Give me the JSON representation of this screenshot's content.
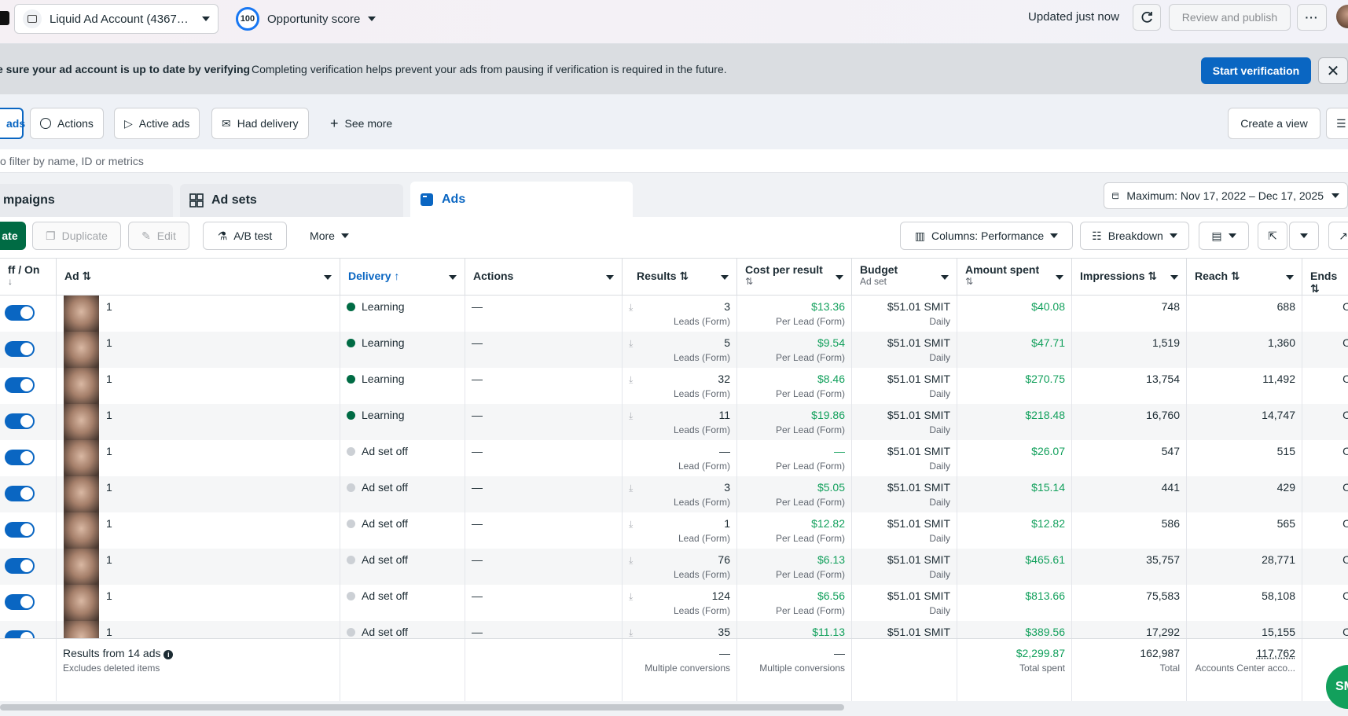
{
  "topbar": {
    "account_name": "Liquid Ad Account (4367…",
    "opportunity_score": "100",
    "opportunity_label": "Opportunity score",
    "updated_text": "Updated just now",
    "review_label": "Review and publish",
    "more_label": "···"
  },
  "banner": {
    "bold_text": "e sure your ad account is up to date by verifying",
    "text": "Completing verification helps prevent your ads from pausing if verification is required in the future.",
    "button_label": "Start verification",
    "close_label": "✕"
  },
  "filters": {
    "chips": [
      {
        "label": "ads"
      },
      {
        "label": "Actions"
      },
      {
        "label": "Active ads"
      },
      {
        "label": "Had delivery"
      },
      {
        "label": "See more"
      }
    ],
    "create_view_label": "Create a view"
  },
  "search": {
    "placeholder": "o filter by name, ID or metrics"
  },
  "levels": {
    "campaigns": "mpaigns",
    "adsets": "Ad sets",
    "ads": "Ads",
    "date_range": "Maximum: Nov 17, 2022 – Dec 17, 2025"
  },
  "toolbar": {
    "create_label": "ate",
    "duplicate_label": "Duplicate",
    "edit_label": "Edit",
    "ab_label": "A/B test",
    "more_label": "More",
    "columns_label": "Columns: Performance",
    "breakdown_label": "Breakdown"
  },
  "columns": {
    "offon": "ff / On",
    "offon_sort": "↓",
    "ad": "Ad ⇅",
    "delivery": "Delivery ↑",
    "actions": "Actions",
    "results": "Results ⇅",
    "cpr": "Cost per result",
    "cpr_sort": "⇅",
    "budget": "Budget",
    "budget_sub": "Ad set",
    "spent": "Amount spent",
    "spent_sort": "⇅",
    "impressions": "Impressions ⇅",
    "reach": "Reach ⇅",
    "ends": "Ends ⇅"
  },
  "rows": [
    {
      "name": "1",
      "delivery": "Learning",
      "status": "on",
      "actions": "—",
      "results": "3",
      "results_sub": "Leads (Form)",
      "cpr": "$13.36",
      "cpr_sub": "Per Lead (Form)",
      "budget": "$51.01 SMIT",
      "budget_sub": "Daily",
      "spent": "$40.08",
      "impressions": "748",
      "reach": "688",
      "ends": "O"
    },
    {
      "name": "1",
      "delivery": "Learning",
      "status": "on",
      "actions": "—",
      "results": "5",
      "results_sub": "Leads (Form)",
      "cpr": "$9.54",
      "cpr_sub": "Per Lead (Form)",
      "budget": "$51.01 SMIT",
      "budget_sub": "Daily",
      "spent": "$47.71",
      "impressions": "1,519",
      "reach": "1,360",
      "ends": "O"
    },
    {
      "name": "1",
      "delivery": "Learning",
      "status": "on",
      "actions": "—",
      "results": "32",
      "results_sub": "Leads (Form)",
      "cpr": "$8.46",
      "cpr_sub": "Per Lead (Form)",
      "budget": "$51.01 SMIT",
      "budget_sub": "Daily",
      "spent": "$270.75",
      "impressions": "13,754",
      "reach": "11,492",
      "ends": "O"
    },
    {
      "name": "1",
      "delivery": "Learning",
      "status": "on",
      "actions": "—",
      "results": "11",
      "results_sub": "Leads (Form)",
      "cpr": "$19.86",
      "cpr_sub": "Per Lead (Form)",
      "budget": "$51.01 SMIT",
      "budget_sub": "Daily",
      "spent": "$218.48",
      "impressions": "16,760",
      "reach": "14,747",
      "ends": "O"
    },
    {
      "name": "1",
      "delivery": "Ad set off",
      "status": "off",
      "actions": "—",
      "results": "—",
      "results_sub": "Lead (Form)",
      "cpr": "—",
      "cpr_sub": "Per Lead (Form)",
      "budget": "$51.01 SMIT",
      "budget_sub": "Daily",
      "spent": "$26.07",
      "impressions": "547",
      "reach": "515",
      "ends": "O"
    },
    {
      "name": "1",
      "delivery": "Ad set off",
      "status": "off",
      "actions": "—",
      "results": "3",
      "results_sub": "Leads (Form)",
      "cpr": "$5.05",
      "cpr_sub": "Per Lead (Form)",
      "budget": "$51.01 SMIT",
      "budget_sub": "Daily",
      "spent": "$15.14",
      "impressions": "441",
      "reach": "429",
      "ends": "O"
    },
    {
      "name": "1",
      "delivery": "Ad set off",
      "status": "off",
      "actions": "—",
      "results": "1",
      "results_sub": "Lead (Form)",
      "cpr": "$12.82",
      "cpr_sub": "Per Lead (Form)",
      "budget": "$51.01 SMIT",
      "budget_sub": "Daily",
      "spent": "$12.82",
      "impressions": "586",
      "reach": "565",
      "ends": "O"
    },
    {
      "name": "1",
      "delivery": "Ad set off",
      "status": "off",
      "actions": "—",
      "results": "76",
      "results_sub": "Leads (Form)",
      "cpr": "$6.13",
      "cpr_sub": "Per Lead (Form)",
      "budget": "$51.01 SMIT",
      "budget_sub": "Daily",
      "spent": "$465.61",
      "impressions": "35,757",
      "reach": "28,771",
      "ends": "O"
    },
    {
      "name": "1",
      "delivery": "Ad set off",
      "status": "off",
      "actions": "—",
      "results": "124",
      "results_sub": "Leads (Form)",
      "cpr": "$6.56",
      "cpr_sub": "Per Lead (Form)",
      "budget": "$51.01 SMIT",
      "budget_sub": "Daily",
      "spent": "$813.66",
      "impressions": "75,583",
      "reach": "58,108",
      "ends": "O"
    },
    {
      "name": "1",
      "delivery": "Ad set off",
      "status": "off",
      "actions": "—",
      "results": "35",
      "results_sub": "",
      "cpr": "$11.13",
      "cpr_sub": "",
      "budget": "$51.01 SMIT",
      "budget_sub": "",
      "spent": "$389.56",
      "impressions": "17,292",
      "reach": "15,155",
      "ends": "O"
    }
  ],
  "footer": {
    "summary": "Results from 14 ads",
    "summary_sub": "Excludes deleted items",
    "results": "—",
    "results_sub": "Multiple conversions",
    "cpr": "—",
    "cpr_sub": "Multiple conversions",
    "spent": "$2,299.87",
    "spent_sub": "Total spent",
    "impressions": "162,987",
    "impressions_sub": "Total",
    "reach": "117,762",
    "reach_sub": "Accounts Center acco..."
  },
  "fab_label": "SM",
  "colors": {
    "accent": "#0a66c2",
    "success": "#12a05c",
    "learning": "#006b44"
  }
}
